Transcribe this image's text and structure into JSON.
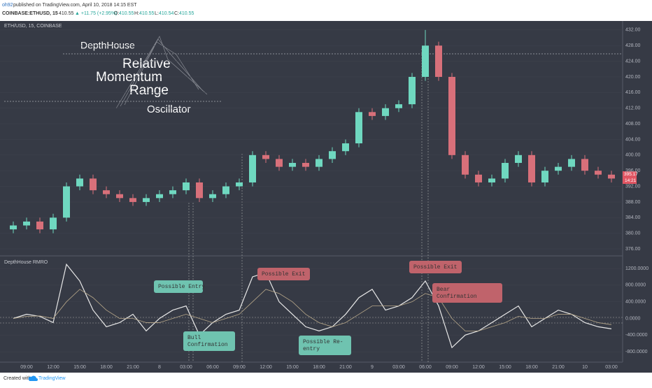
{
  "header": {
    "author": "oh92",
    "published": "published on TradingView.com, April 10, 2018 14:15 EST",
    "symbol": "COINBASE:ETHUSD, 15",
    "last": "410.55",
    "change": "▲ +11.75 (+2.95%)",
    "o": "O:",
    "ov": "410.55",
    "h": "H:",
    "hv": "410.55",
    "l": "L:",
    "lv": "410.54",
    "c": "C:",
    "cv": "410.55"
  },
  "pane_label": "ETH/USD, 15, COINBASE",
  "logo": [
    "DepthHouse",
    "Relative",
    "Momentum",
    "Range",
    "Oscillator"
  ],
  "price_tag": {
    "price": "395.17",
    "time": "14:21"
  },
  "footer": {
    "created": "Created with",
    "brand": "TradingView"
  },
  "chart_data": [
    {
      "type": "candlestick",
      "up_color": "#6fd8c0",
      "down_color": "#d8707a",
      "categories": [
        null,
        "09:00",
        null,
        "12:00",
        null,
        "15:00",
        null,
        "18:00",
        null,
        "21:00",
        null,
        "8",
        null,
        "03:00",
        null,
        "06:00",
        null,
        "09:00",
        null,
        "12:00",
        null,
        "15:00",
        null,
        "18:00",
        null,
        "21:00",
        null,
        "9",
        null,
        "03:00",
        null,
        "06:00",
        null,
        "09:00",
        null,
        "12:00",
        null,
        "15:00",
        null,
        "18:00",
        null,
        "21:00",
        null,
        "10",
        null,
        "03:00"
      ],
      "open": [
        381,
        382,
        383,
        381,
        384,
        392,
        394,
        391,
        390,
        389,
        388,
        389,
        390,
        391,
        393,
        389,
        390,
        392,
        393,
        400,
        399,
        397,
        398,
        397,
        399,
        401,
        403,
        411,
        410,
        412,
        413,
        420,
        428,
        420,
        400,
        395,
        393,
        394,
        398,
        400,
        393,
        396,
        397,
        399,
        396,
        395
      ],
      "high": [
        383,
        384,
        384,
        385,
        393,
        395,
        395,
        392,
        391,
        390,
        390,
        391,
        392,
        394,
        394,
        391,
        393,
        394,
        401,
        401,
        400,
        399,
        399,
        400,
        402,
        404,
        412,
        412,
        413,
        414,
        421,
        432,
        429,
        421,
        401,
        396,
        395,
        399,
        401,
        401,
        397,
        398,
        400,
        400,
        397,
        396
      ],
      "low": [
        380,
        381,
        380,
        380,
        383,
        391,
        390,
        389,
        388,
        387,
        387,
        388,
        389,
        390,
        388,
        388,
        389,
        391,
        392,
        398,
        396,
        396,
        396,
        396,
        398,
        400,
        402,
        409,
        409,
        411,
        412,
        419,
        419,
        399,
        394,
        392,
        392,
        393,
        397,
        392,
        392,
        395,
        396,
        395,
        394,
        393
      ],
      "close": [
        382,
        383,
        381,
        384,
        392,
        394,
        391,
        390,
        389,
        388,
        389,
        390,
        391,
        393,
        389,
        390,
        392,
        393,
        400,
        399,
        397,
        398,
        397,
        399,
        401,
        403,
        411,
        410,
        412,
        413,
        420,
        428,
        420,
        400,
        395,
        393,
        394,
        398,
        400,
        393,
        396,
        397,
        399,
        396,
        395,
        394
      ],
      "ylim": [
        374.4,
        434.3
      ],
      "yticks": [
        {
          "value": 376,
          "label": "376.00"
        },
        {
          "value": 380,
          "label": "380.00"
        },
        {
          "value": 384,
          "label": "384.00"
        },
        {
          "value": 388,
          "label": "388.00"
        },
        {
          "value": 392,
          "label": "392.00"
        },
        {
          "value": 396,
          "label": "396.00"
        },
        {
          "value": 400,
          "label": "400.00"
        },
        {
          "value": 404,
          "label": "404.00"
        },
        {
          "value": 408,
          "label": "408.00"
        },
        {
          "value": 412,
          "label": "412.00"
        },
        {
          "value": 416,
          "label": "416.00"
        },
        {
          "value": 420,
          "label": "420.00"
        },
        {
          "value": 424,
          "label": "424.00"
        },
        {
          "value": 428,
          "label": "428.00"
        },
        {
          "value": 432,
          "label": "432.00"
        }
      ]
    },
    {
      "type": "line",
      "title": "DepthHouse RMRO",
      "series": [
        {
          "color": "#e8e8e8",
          "values": [
            0,
            100,
            50,
            -100,
            1300,
            900,
            200,
            -200,
            -100,
            100,
            -300,
            0,
            200,
            300,
            -400,
            -100,
            100,
            200,
            1000,
            1100,
            400,
            100,
            -200,
            -300,
            -200,
            100,
            500,
            700,
            200,
            300,
            500,
            900,
            300,
            -700,
            -400,
            -300,
            -100,
            100,
            300,
            -200,
            0,
            200,
            100,
            -100,
            -200,
            -250
          ]
        },
        {
          "color": "#b8a88a",
          "values": [
            0,
            50,
            60,
            0,
            400,
            700,
            500,
            200,
            0,
            0,
            -100,
            -100,
            0,
            100,
            0,
            -100,
            0,
            100,
            400,
            700,
            600,
            400,
            100,
            -100,
            -200,
            -100,
            100,
            300,
            300,
            300,
            400,
            600,
            500,
            0,
            -300,
            -300,
            -200,
            -100,
            50,
            0,
            0,
            100,
            100,
            0,
            -100,
            -150
          ]
        }
      ],
      "ylim": [
        -1050,
        1470
      ],
      "yticks": [
        {
          "value": -800,
          "label": "-800.0000"
        },
        {
          "value": -400,
          "label": "-400.0000"
        },
        {
          "value": 0,
          "label": "0.0000"
        },
        {
          "value": 400,
          "label": "400.0000"
        },
        {
          "value": 800,
          "label": "800.0000"
        },
        {
          "value": 1200,
          "label": "1200.0000"
        }
      ],
      "annotations": [
        "Possible Entry",
        "Bull\nConfirmation",
        "Possible Exit",
        "Possible Re-\nentry",
        "Possible Exit",
        "Bear\nConfirmation"
      ]
    }
  ]
}
